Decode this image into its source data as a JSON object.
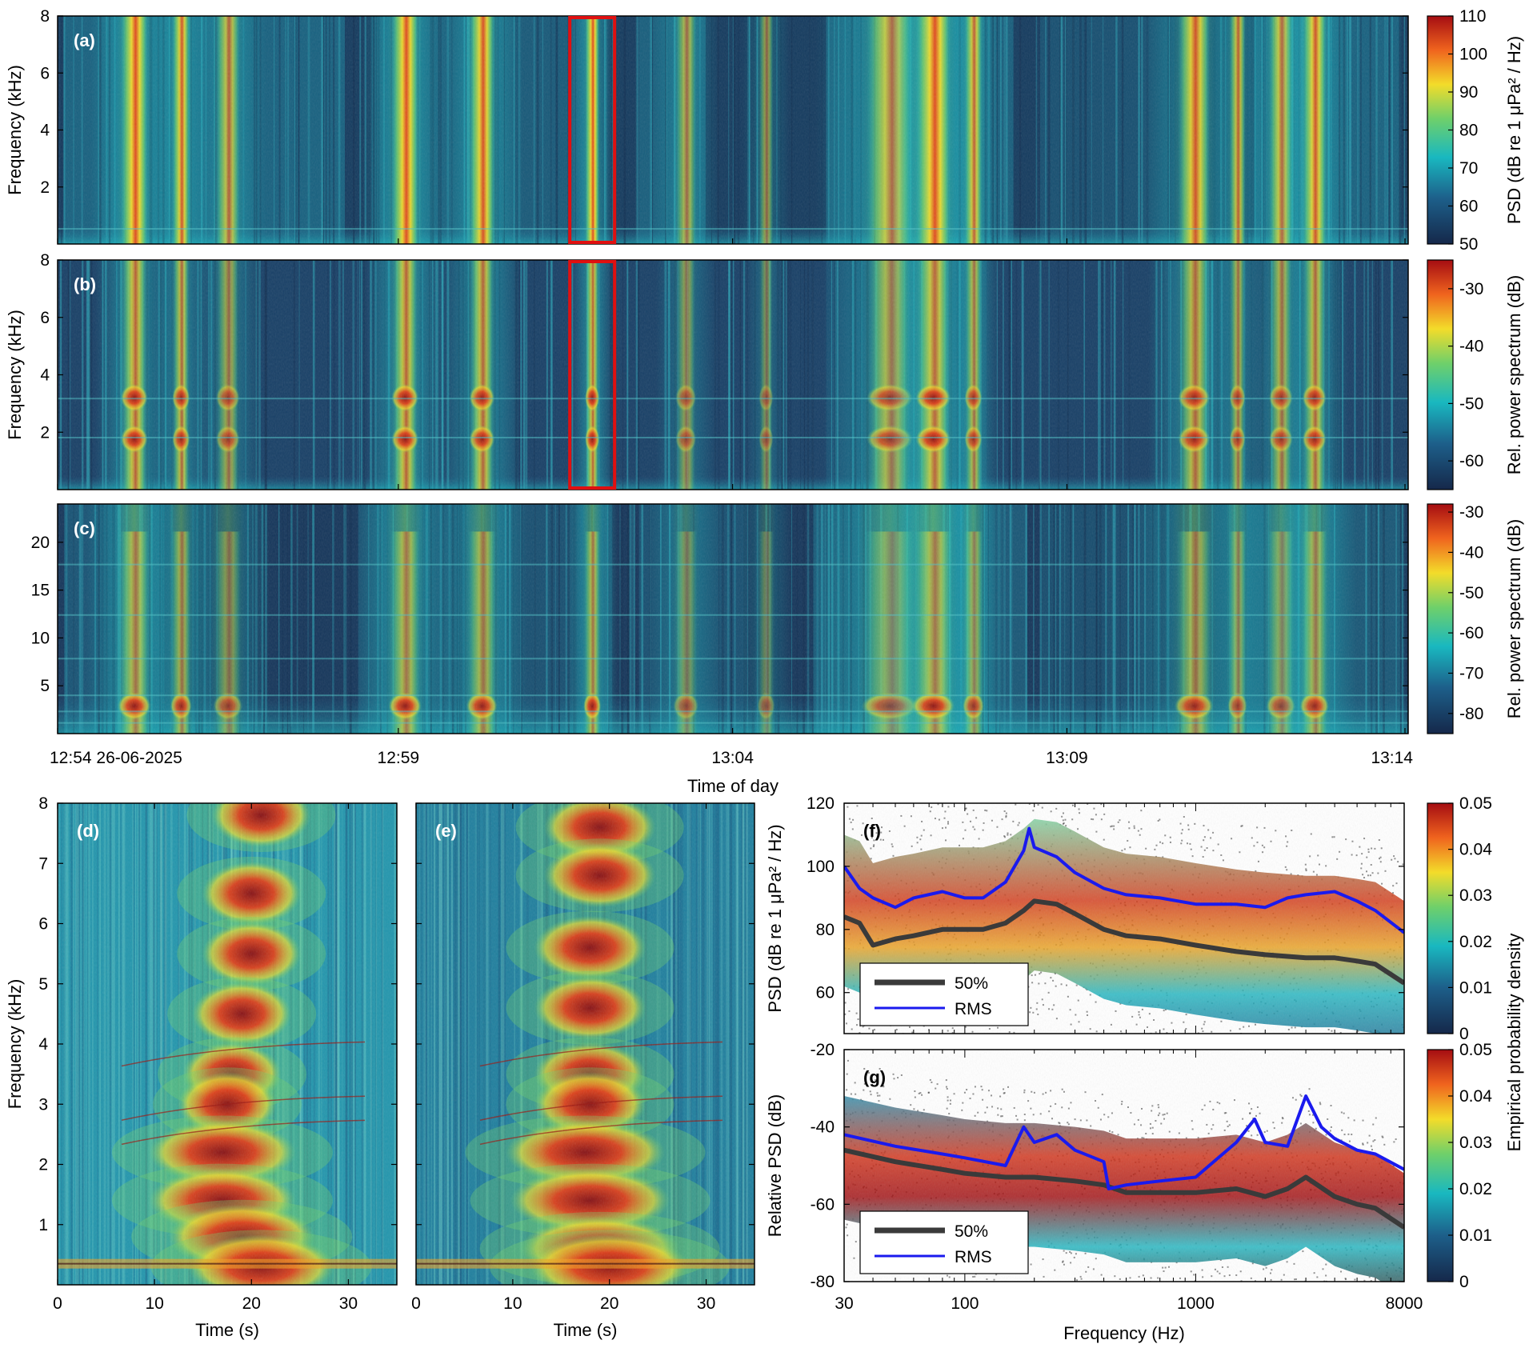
{
  "chart_data": [
    {
      "id": "a",
      "type": "heatmap",
      "panel_label": "(a)",
      "ylabel": "Frequency (kHz)",
      "yticks": [
        "2",
        "4",
        "6",
        "8"
      ],
      "yticks_extra": "8",
      "ylim": [
        0,
        8
      ],
      "colorbar_label": "PSD (dB re 1 μPa² / Hz)",
      "colorbar_ticks": [
        "50",
        "60",
        "70",
        "80",
        "90",
        "100",
        "110"
      ],
      "colorbar_range": [
        50,
        110
      ],
      "highlight_box": "red rectangle around event near 13:01"
    },
    {
      "id": "b",
      "type": "heatmap",
      "panel_label": "(b)",
      "ylabel": "Frequency (kHz)",
      "yticks": [
        "2",
        "4",
        "6",
        "8"
      ],
      "ylim": [
        0,
        8
      ],
      "colorbar_label": "Rel. power spectrum (dB)",
      "colorbar_ticks": [
        "-60",
        "-50",
        "-40",
        "-30"
      ],
      "colorbar_range": [
        -65,
        -25
      ]
    },
    {
      "id": "c",
      "type": "heatmap",
      "panel_label": "(c)",
      "ylabel": "",
      "yticks": [
        "5",
        "10",
        "15",
        "20"
      ],
      "ylim": [
        0,
        24
      ],
      "colorbar_label": "Rel. power spectrum (dB)",
      "colorbar_ticks": [
        "-80",
        "-70",
        "-60",
        "-50",
        "-40",
        "-30"
      ],
      "colorbar_range": [
        -85,
        -28
      ],
      "xticks": [
        "12:54 26-06-2025",
        "12:59",
        "13:04",
        "13:09",
        "13:14"
      ],
      "xlabel": "Time of day"
    },
    {
      "id": "d",
      "type": "heatmap",
      "panel_label": "(d)",
      "ylabel": "Frequency (kHz)",
      "yticks": [
        "1",
        "2",
        "3",
        "4",
        "5",
        "6",
        "7",
        "8"
      ],
      "ylim": [
        0,
        8
      ],
      "xlabel": "Time (s)",
      "xticks": [
        "0",
        "10",
        "20",
        "30"
      ],
      "xlim": [
        0,
        35
      ]
    },
    {
      "id": "e",
      "type": "heatmap",
      "panel_label": "(e)",
      "xlabel": "Time (s)",
      "xticks": [
        "0",
        "10",
        "20",
        "30"
      ],
      "xlim": [
        0,
        35
      ]
    },
    {
      "id": "f",
      "type": "line",
      "panel_label": "(f)",
      "ylabel": "PSD (dB re 1 μPa² / Hz)",
      "yticks": [
        "60",
        "80",
        "100",
        "120"
      ],
      "ylim": [
        47,
        120
      ],
      "xscale": "log",
      "xlim": [
        30,
        8000
      ],
      "colorbar_label": "Empirical probability density",
      "colorbar_ticks": [
        "0",
        "0.01",
        "0.02",
        "0.03",
        "0.04",
        "0.05"
      ],
      "legend_position": "bottom-left",
      "series": [
        {
          "name": "50%",
          "color": "#3a3a3a",
          "x": [
            30,
            35,
            40,
            50,
            60,
            80,
            100,
            120,
            150,
            180,
            200,
            250,
            300,
            400,
            500,
            700,
            1000,
            1500,
            2000,
            3000,
            4000,
            5000,
            6000,
            8000
          ],
          "y": [
            84,
            82,
            75,
            77,
            78,
            80,
            80,
            80,
            82,
            86,
            89,
            88,
            85,
            80,
            78,
            77,
            75,
            73,
            72,
            71,
            71,
            70,
            69,
            63
          ]
        },
        {
          "name": "RMS",
          "color": "#1a1aee",
          "x": [
            30,
            35,
            40,
            50,
            60,
            80,
            100,
            120,
            150,
            180,
            190,
            200,
            250,
            300,
            400,
            500,
            700,
            1000,
            1500,
            2000,
            2500,
            3000,
            4000,
            5000,
            6000,
            8000
          ],
          "y": [
            100,
            93,
            90,
            87,
            90,
            92,
            90,
            90,
            95,
            105,
            112,
            106,
            103,
            98,
            93,
            91,
            90,
            88,
            88,
            87,
            90,
            91,
            92,
            89,
            86,
            79
          ]
        }
      ]
    },
    {
      "id": "g",
      "type": "line",
      "panel_label": "(g)",
      "ylabel": "Relative PSD (dB)",
      "yticks": [
        "-80",
        "-60",
        "-40",
        "-20"
      ],
      "ylim": [
        -80,
        -20
      ],
      "xscale": "log",
      "xlim": [
        30,
        8000
      ],
      "xticks": [
        "30",
        "100",
        "1000",
        "8000"
      ],
      "xlabel": "Frequency (Hz)",
      "colorbar_label": "Empirical probability density",
      "colorbar_ticks": [
        "0",
        "0.01",
        "0.02",
        "0.03",
        "0.04",
        "0.05"
      ],
      "legend_position": "bottom-left",
      "series": [
        {
          "name": "50%",
          "color": "#3a3a3a",
          "x": [
            30,
            50,
            80,
            100,
            150,
            200,
            300,
            400,
            500,
            700,
            1000,
            1500,
            2000,
            2500,
            3000,
            4000,
            5000,
            6000,
            8000
          ],
          "y": [
            -46,
            -49,
            -51,
            -52,
            -53,
            -53,
            -54,
            -55,
            -57,
            -57,
            -57,
            -56,
            -58,
            -56,
            -53,
            -58,
            -60,
            -61,
            -66
          ]
        },
        {
          "name": "RMS",
          "color": "#1a1aee",
          "x": [
            30,
            50,
            80,
            100,
            150,
            180,
            200,
            250,
            300,
            400,
            420,
            500,
            700,
            1000,
            1500,
            1800,
            2000,
            2500,
            3000,
            3500,
            4000,
            5000,
            6000,
            8000
          ],
          "y": [
            -42,
            -45,
            -47,
            -48,
            -50,
            -40,
            -44,
            -42,
            -46,
            -49,
            -56,
            -55,
            -54,
            -53,
            -44,
            -38,
            -44,
            -45,
            -32,
            -40,
            -43,
            -46,
            -47,
            -51
          ]
        }
      ]
    }
  ]
}
